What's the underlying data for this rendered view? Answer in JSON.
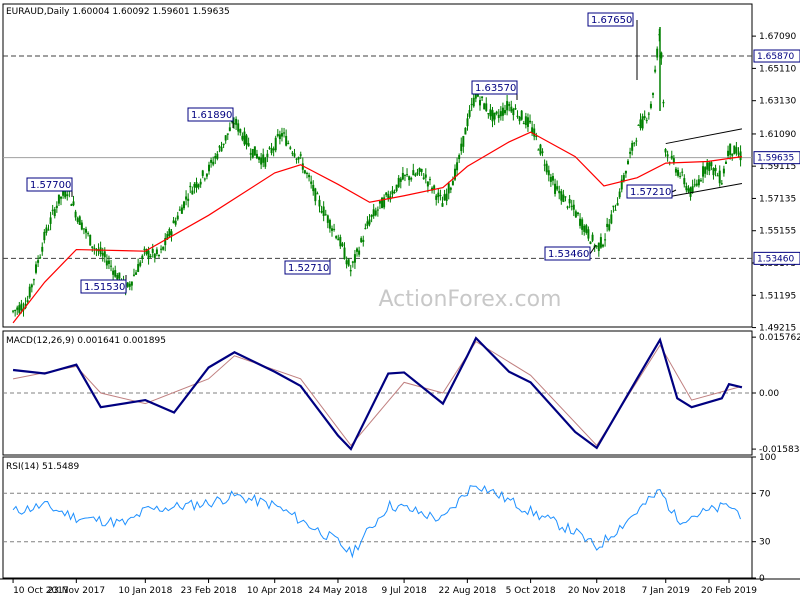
{
  "header": {
    "symbol": "EURAUD,Daily",
    "ohlc": "1.60004 1.60092 1.59601 1.59635"
  },
  "watermark": "ActionForex.com",
  "colors": {
    "candle": "#008000",
    "ma": "#ff0000",
    "macd": "#000080",
    "signal": "#c08080",
    "rsi": "#1e90ff",
    "label_border": "#000080",
    "label_text": "#000080",
    "grid": "#c0c0c0",
    "axis": "#000000"
  },
  "chart_data": [
    {
      "type": "candlestick",
      "title": "EURAUD,Daily",
      "ylim": [
        1.4925,
        1.6906
      ],
      "y_ticks": [
        "1.67090",
        "1.65110",
        "1.63130",
        "1.61090",
        "1.59115",
        "1.57135",
        "1.55155",
        "1.53175",
        "1.51195",
        "1.49215"
      ],
      "x_ticks": [
        "10 Oct 2017",
        "23 Nov 2017",
        "10 Jan 2018",
        "23 Feb 2018",
        "10 Apr 2018",
        "24 May 2018",
        "9 Jul 2018",
        "22 Aug 2018",
        "5 Oct 2018",
        "20 Nov 2018",
        "7 Jan 2019",
        "20 Feb 2019"
      ],
      "horizontal_levels": [
        {
          "value": 1.6587,
          "label": "1.65870",
          "style": "dashed"
        },
        {
          "value": 1.5346,
          "label": "1.53460",
          "style": "dashed"
        },
        {
          "value": 1.59635,
          "label": "1.59635",
          "style": "solid"
        }
      ],
      "annotations": [
        "1.67650",
        "1.63570",
        "1.61890",
        "1.57700",
        "1.51530",
        "1.52710",
        "1.53460",
        "1.57210"
      ],
      "path_points": [
        {
          "x": "10 Oct 2017",
          "y": 1.502
        },
        {
          "x": "20 Oct 2017",
          "y": 1.508
        },
        {
          "x": "1 Nov 2017",
          "y": 1.548
        },
        {
          "x": "10 Nov 2017",
          "y": 1.569
        },
        {
          "x": "17 Nov 2017",
          "y": 1.577
        },
        {
          "x": "23 Nov 2017",
          "y": 1.562
        },
        {
          "x": "5 Dec 2017",
          "y": 1.542
        },
        {
          "x": "15 Dec 2017",
          "y": 1.533
        },
        {
          "x": "28 Dec 2017",
          "y": 1.5153
        },
        {
          "x": "10 Jan 2018",
          "y": 1.538
        },
        {
          "x": "20 Jan 2018",
          "y": 1.536
        },
        {
          "x": "30 Jan 2018",
          "y": 1.556
        },
        {
          "x": "10 Feb 2018",
          "y": 1.576
        },
        {
          "x": "23 Feb 2018",
          "y": 1.589
        },
        {
          "x": "5 Mar 2018",
          "y": 1.605
        },
        {
          "x": "13 Mar 2018",
          "y": 1.6189
        },
        {
          "x": "25 Mar 2018",
          "y": 1.601
        },
        {
          "x": "3 Apr 2018",
          "y": 1.594
        },
        {
          "x": "15 Apr 2018",
          "y": 1.611
        },
        {
          "x": "28 Apr 2018",
          "y": 1.595
        },
        {
          "x": "10 May 2018",
          "y": 1.57
        },
        {
          "x": "24 May 2018",
          "y": 1.548
        },
        {
          "x": "2 Jun 2018",
          "y": 1.5271
        },
        {
          "x": "15 Jun 2018",
          "y": 1.558
        },
        {
          "x": "28 Jun 2018",
          "y": 1.573
        },
        {
          "x": "9 Jul 2018",
          "y": 1.584
        },
        {
          "x": "22 Jul 2018",
          "y": 1.587
        },
        {
          "x": "5 Aug 2018",
          "y": 1.568
        },
        {
          "x": "15 Aug 2018",
          "y": 1.59
        },
        {
          "x": "22 Aug 2018",
          "y": 1.618
        },
        {
          "x": "28 Aug 2018",
          "y": 1.6357
        },
        {
          "x": "10 Sep 2018",
          "y": 1.62
        },
        {
          "x": "20 Sep 2018",
          "y": 1.629
        },
        {
          "x": "5 Oct 2018",
          "y": 1.616
        },
        {
          "x": "12 Oct 2018",
          "y": 1.601
        },
        {
          "x": "22 Oct 2018",
          "y": 1.578
        },
        {
          "x": "5 Nov 2018",
          "y": 1.563
        },
        {
          "x": "20 Nov 2018",
          "y": 1.541
        },
        {
          "x": "25 Nov 2018",
          "y": 1.546
        },
        {
          "x": "5 Dec 2018",
          "y": 1.572
        },
        {
          "x": "18 Dec 2018",
          "y": 1.612
        },
        {
          "x": "28 Dec 2018",
          "y": 1.628
        },
        {
          "x": "3 Jan 2019",
          "y": 1.6765
        },
        {
          "x": "7 Jan 2019",
          "y": 1.6
        },
        {
          "x": "15 Jan 2019",
          "y": 1.589
        },
        {
          "x": "25 Jan 2019",
          "y": 1.574
        },
        {
          "x": "5 Feb 2019",
          "y": 1.593
        },
        {
          "x": "15 Feb 2019",
          "y": 1.583
        },
        {
          "x": "20 Feb 2019",
          "y": 1.602
        },
        {
          "x": "1 Mar 2019",
          "y": 1.597
        }
      ],
      "ma_points": [
        {
          "x": "10 Oct 2017",
          "y": 1.495
        },
        {
          "x": "1 Nov 2017",
          "y": 1.52
        },
        {
          "x": "23 Nov 2017",
          "y": 1.54
        },
        {
          "x": "10 Jan 2018",
          "y": 1.539
        },
        {
          "x": "23 Feb 2018",
          "y": 1.561
        },
        {
          "x": "10 Apr 2018",
          "y": 1.587
        },
        {
          "x": "28 Apr 2018",
          "y": 1.592
        },
        {
          "x": "24 May 2018",
          "y": 1.58
        },
        {
          "x": "15 Jun 2018",
          "y": 1.569
        },
        {
          "x": "9 Jul 2018",
          "y": 1.573
        },
        {
          "x": "5 Aug 2018",
          "y": 1.578
        },
        {
          "x": "22 Aug 2018",
          "y": 1.591
        },
        {
          "x": "20 Sep 2018",
          "y": 1.606
        },
        {
          "x": "5 Oct 2018",
          "y": 1.612
        },
        {
          "x": "5 Nov 2018",
          "y": 1.597
        },
        {
          "x": "25 Nov 2018",
          "y": 1.579
        },
        {
          "x": "18 Dec 2018",
          "y": 1.584
        },
        {
          "x": "7 Jan 2019",
          "y": 1.593
        },
        {
          "x": "5 Feb 2019",
          "y": 1.594
        },
        {
          "x": "1 Mar 2019",
          "y": 1.597
        }
      ],
      "channel_lines": [
        [
          {
            "x": "7 Jan 2019",
            "y": 1.605
          },
          {
            "x": "1 Mar 2019",
            "y": 1.614
          }
        ],
        [
          {
            "x": "7 Jan 2019",
            "y": 1.5721
          },
          {
            "x": "1 Mar 2019",
            "y": 1.5805
          }
        ]
      ]
    },
    {
      "type": "line",
      "title": "MACD(12,26,9) 0.001641 0.001895",
      "ylim": [
        -0.0175,
        0.0175
      ],
      "y_ticks": [
        "0.015762",
        "0.00",
        "-0.015834"
      ],
      "series": [
        {
          "name": "MACD",
          "points": [
            {
              "x": "10 Oct 2017",
              "y": 0.0065
            },
            {
              "x": "1 Nov 2017",
              "y": 0.0055
            },
            {
              "x": "23 Nov 2017",
              "y": 0.008
            },
            {
              "x": "10 Dec 2017",
              "y": -0.004
            },
            {
              "x": "10 Jan 2018",
              "y": -0.002
            },
            {
              "x": "30 Jan 2018",
              "y": -0.0055
            },
            {
              "x": "23 Feb 2018",
              "y": 0.0072
            },
            {
              "x": "13 Mar 2018",
              "y": 0.0115
            },
            {
              "x": "10 Apr 2018",
              "y": 0.006
            },
            {
              "x": "28 Apr 2018",
              "y": 0.002
            },
            {
              "x": "24 May 2018",
              "y": -0.012
            },
            {
              "x": "2 Jun 2018",
              "y": -0.0158
            },
            {
              "x": "28 Jun 2018",
              "y": 0.0055
            },
            {
              "x": "9 Jul 2018",
              "y": 0.0058
            },
            {
              "x": "5 Aug 2018",
              "y": -0.003
            },
            {
              "x": "22 Aug 2018",
              "y": 0.0105
            },
            {
              "x": "28 Aug 2018",
              "y": 0.0155
            },
            {
              "x": "20 Sep 2018",
              "y": 0.006
            },
            {
              "x": "5 Oct 2018",
              "y": 0.003
            },
            {
              "x": "5 Nov 2018",
              "y": -0.011
            },
            {
              "x": "20 Nov 2018",
              "y": -0.0155
            },
            {
              "x": "18 Dec 2018",
              "y": 0.004
            },
            {
              "x": "3 Jan 2019",
              "y": 0.015
            },
            {
              "x": "15 Jan 2019",
              "y": -0.0015
            },
            {
              "x": "25 Jan 2019",
              "y": -0.004
            },
            {
              "x": "15 Feb 2019",
              "y": -0.0015
            },
            {
              "x": "20 Feb 2019",
              "y": 0.0025
            },
            {
              "x": "1 Mar 2019",
              "y": 0.0016
            }
          ]
        },
        {
          "name": "Signal",
          "points": [
            {
              "x": "10 Oct 2017",
              "y": 0.004
            },
            {
              "x": "23 Nov 2017",
              "y": 0.0075
            },
            {
              "x": "10 Dec 2017",
              "y": 0.0
            },
            {
              "x": "10 Jan 2018",
              "y": -0.003
            },
            {
              "x": "23 Feb 2018",
              "y": 0.004
            },
            {
              "x": "13 Mar 2018",
              "y": 0.0105
            },
            {
              "x": "28 Apr 2018",
              "y": 0.004
            },
            {
              "x": "2 Jun 2018",
              "y": -0.0148
            },
            {
              "x": "9 Jul 2018",
              "y": 0.003
            },
            {
              "x": "5 Aug 2018",
              "y": 0.0
            },
            {
              "x": "28 Aug 2018",
              "y": 0.0145
            },
            {
              "x": "5 Oct 2018",
              "y": 0.005
            },
            {
              "x": "20 Nov 2018",
              "y": -0.0148
            },
            {
              "x": "3 Jan 2019",
              "y": 0.0135
            },
            {
              "x": "25 Jan 2019",
              "y": -0.002
            },
            {
              "x": "1 Mar 2019",
              "y": 0.0019
            }
          ]
        }
      ]
    },
    {
      "type": "line",
      "title": "RSI(14) 51.5489",
      "ylim": [
        0,
        100
      ],
      "y_ticks": [
        "100",
        "70",
        "30",
        "0"
      ],
      "series": [
        {
          "name": "RSI",
          "points": [
            {
              "x": "10 Oct 2017",
              "y": 55
            },
            {
              "x": "1 Nov 2017",
              "y": 60
            },
            {
              "x": "23 Nov 2017",
              "y": 50
            },
            {
              "x": "28 Dec 2017",
              "y": 45
            },
            {
              "x": "10 Jan 2018",
              "y": 56
            },
            {
              "x": "23 Feb 2018",
              "y": 62
            },
            {
              "x": "13 Mar 2018",
              "y": 68
            },
            {
              "x": "10 Apr 2018",
              "y": 60
            },
            {
              "x": "24 May 2018",
              "y": 30
            },
            {
              "x": "2 Jun 2018",
              "y": 20
            },
            {
              "x": "28 Jun 2018",
              "y": 60
            },
            {
              "x": "9 Jul 2018",
              "y": 58
            },
            {
              "x": "5 Aug 2018",
              "y": 48
            },
            {
              "x": "22 Aug 2018",
              "y": 72
            },
            {
              "x": "28 Aug 2018",
              "y": 78
            },
            {
              "x": "5 Oct 2018",
              "y": 55
            },
            {
              "x": "5 Nov 2018",
              "y": 38
            },
            {
              "x": "20 Nov 2018",
              "y": 25
            },
            {
              "x": "18 Dec 2018",
              "y": 55
            },
            {
              "x": "3 Jan 2019",
              "y": 72
            },
            {
              "x": "15 Jan 2019",
              "y": 48
            },
            {
              "x": "5 Feb 2019",
              "y": 55
            },
            {
              "x": "20 Feb 2019",
              "y": 60
            },
            {
              "x": "1 Mar 2019",
              "y": 52
            }
          ]
        }
      ]
    }
  ]
}
